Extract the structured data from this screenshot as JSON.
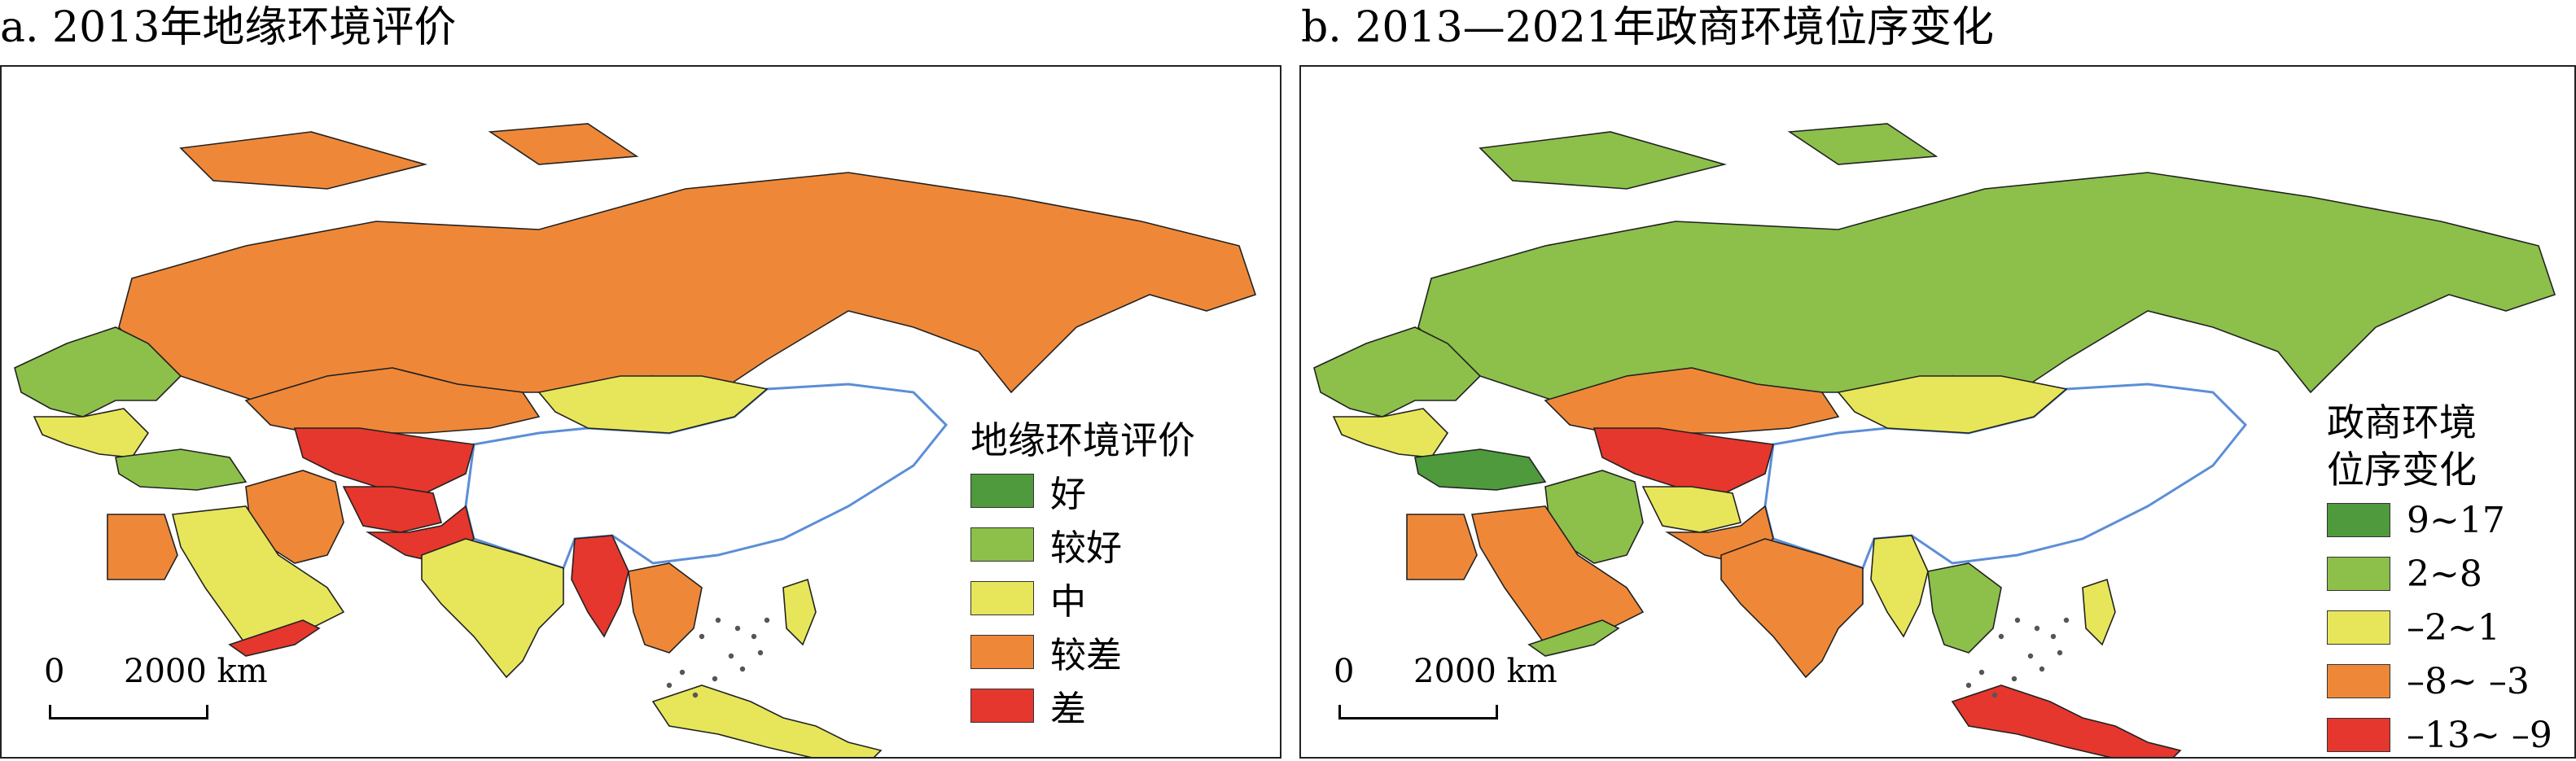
{
  "panels": [
    {
      "title": "a. 2013年地缘环境评价",
      "legend_title": "地缘环境评价",
      "legend": [
        {
          "label": "好",
          "color": "#4e9a3c"
        },
        {
          "label": "较好",
          "color": "#8cc04a"
        },
        {
          "label": "中",
          "color": "#e7e65a"
        },
        {
          "label": "较差",
          "color": "#ee8838"
        },
        {
          "label": "差",
          "color": "#e5372d"
        }
      ],
      "scale_zero": "0",
      "scale_distance": "2000 km"
    },
    {
      "title": "b. 2013—2021年政商环境位序变化",
      "legend_title_line1": "政商环境",
      "legend_title_line2": "位序变化",
      "legend": [
        {
          "label": "9~17",
          "color": "#4e9a3c"
        },
        {
          "label": "2~8",
          "color": "#8cc04a"
        },
        {
          "label": "–2~1",
          "color": "#e7e65a"
        },
        {
          "label": "–8~ –3",
          "color": "#ee8838"
        },
        {
          "label": "–13~ –9",
          "color": "#e5372d"
        }
      ],
      "scale_zero": "0",
      "scale_distance": "2000 km"
    }
  ],
  "map_regions": {
    "a": {
      "russia": "较差",
      "europe_west": "较好",
      "europe_south": "中",
      "turkey": "较好",
      "mongolia": "中",
      "kazakhstan": "较差",
      "central_asia": "差",
      "iran": "较差",
      "afghanistan": "差",
      "pakistan": "差",
      "arabia": "中",
      "yemen": "差",
      "egypt": "较差",
      "india": "中",
      "myanmar": "差",
      "se_asia": "较差",
      "indonesia": "中",
      "philippines": "中"
    },
    "b": {
      "russia": "2~8",
      "europe_west": "2~8",
      "europe_south": "–2~1",
      "turkey": "9~17",
      "mongolia": "–2~1",
      "kazakhstan": "–8~ –3",
      "central_asia": "–13~ –9",
      "iran": "2~8",
      "afghanistan": "–2~1",
      "pakistan": "–8~ –3",
      "arabia": "–8~ –3",
      "yemen": "2~8",
      "egypt": "–8~ –3",
      "india": "–8~ –3",
      "myanmar": "–2~1",
      "se_asia": "2~8",
      "indonesia": "–13~ –9",
      "philippines": "–2~1"
    }
  },
  "colors": {
    "coastline": "#5b8ed6",
    "border": "#222222",
    "china_fill": "#ffffff",
    "islands": "#555555"
  }
}
